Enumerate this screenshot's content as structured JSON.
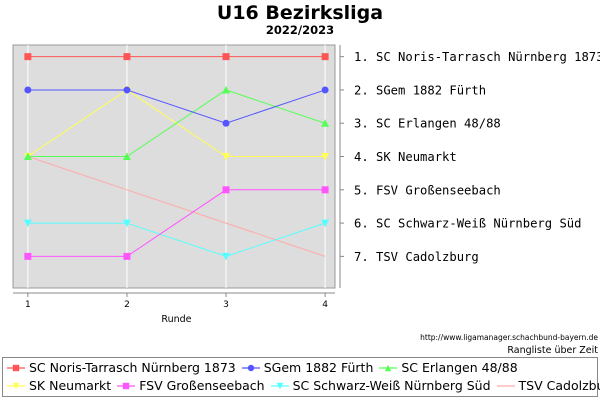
{
  "title": "U16 Bezirksliga",
  "subtitle": "2022/2023",
  "source_url": "http://www.ligamanager.schachbund-bayern.de",
  "rank_over_time": "Rangliste über Zeit",
  "colors": {
    "plot_background": "#dddddd",
    "grid": "#ffffff"
  },
  "chart_data": {
    "type": "line",
    "title": "U16 Bezirksliga",
    "subtitle": "2022/2023",
    "xlabel": "Runde",
    "ylabel": "",
    "x": [
      1,
      2,
      3,
      4
    ],
    "xlim": [
      0.85,
      4.1
    ],
    "ylim": [
      7.95,
      0.65
    ],
    "y_inverted": true,
    "y_tick_labels": [
      "1. SC Noris-Tarrasch Nürnberg 1873",
      "2. SGem 1882 Fürth",
      "3. SC Erlangen 48/88",
      "4. SK Neumarkt",
      "5. FSV Großenseebach",
      "6. SC Schwarz-Weiß Nürnberg Süd",
      "7. TSV Cadolzburg"
    ],
    "grid": false,
    "legend_position": "bottom",
    "series": [
      {
        "name": "SC Noris-Tarrasch Nürnberg 1873",
        "values": [
          1,
          1,
          1,
          1
        ],
        "color": "#ff5555",
        "marker": "square"
      },
      {
        "name": "SGem 1882 Fürth",
        "values": [
          2,
          2,
          3,
          2
        ],
        "color": "#5555ff",
        "marker": "circle"
      },
      {
        "name": "SC Erlangen 48/88",
        "values": [
          4,
          4,
          2,
          3
        ],
        "color": "#55ff55",
        "marker": "triangle-up"
      },
      {
        "name": "SK Neumarkt",
        "values": [
          4,
          2,
          4,
          4
        ],
        "color": "#ffff55",
        "marker": "triangle-down"
      },
      {
        "name": "FSV Großenseebach",
        "values": [
          7,
          7,
          5,
          5
        ],
        "color": "#ff55ff",
        "marker": "square"
      },
      {
        "name": "SC Schwarz-Weiß Nürnberg Süd",
        "values": [
          6,
          6,
          7,
          6
        ],
        "color": "#55ffff",
        "marker": "triangle-down"
      },
      {
        "name": "TSV Cadolzburg",
        "values": [
          4,
          5,
          6,
          7
        ],
        "color": "#ffaaaa",
        "marker": "none"
      }
    ]
  }
}
